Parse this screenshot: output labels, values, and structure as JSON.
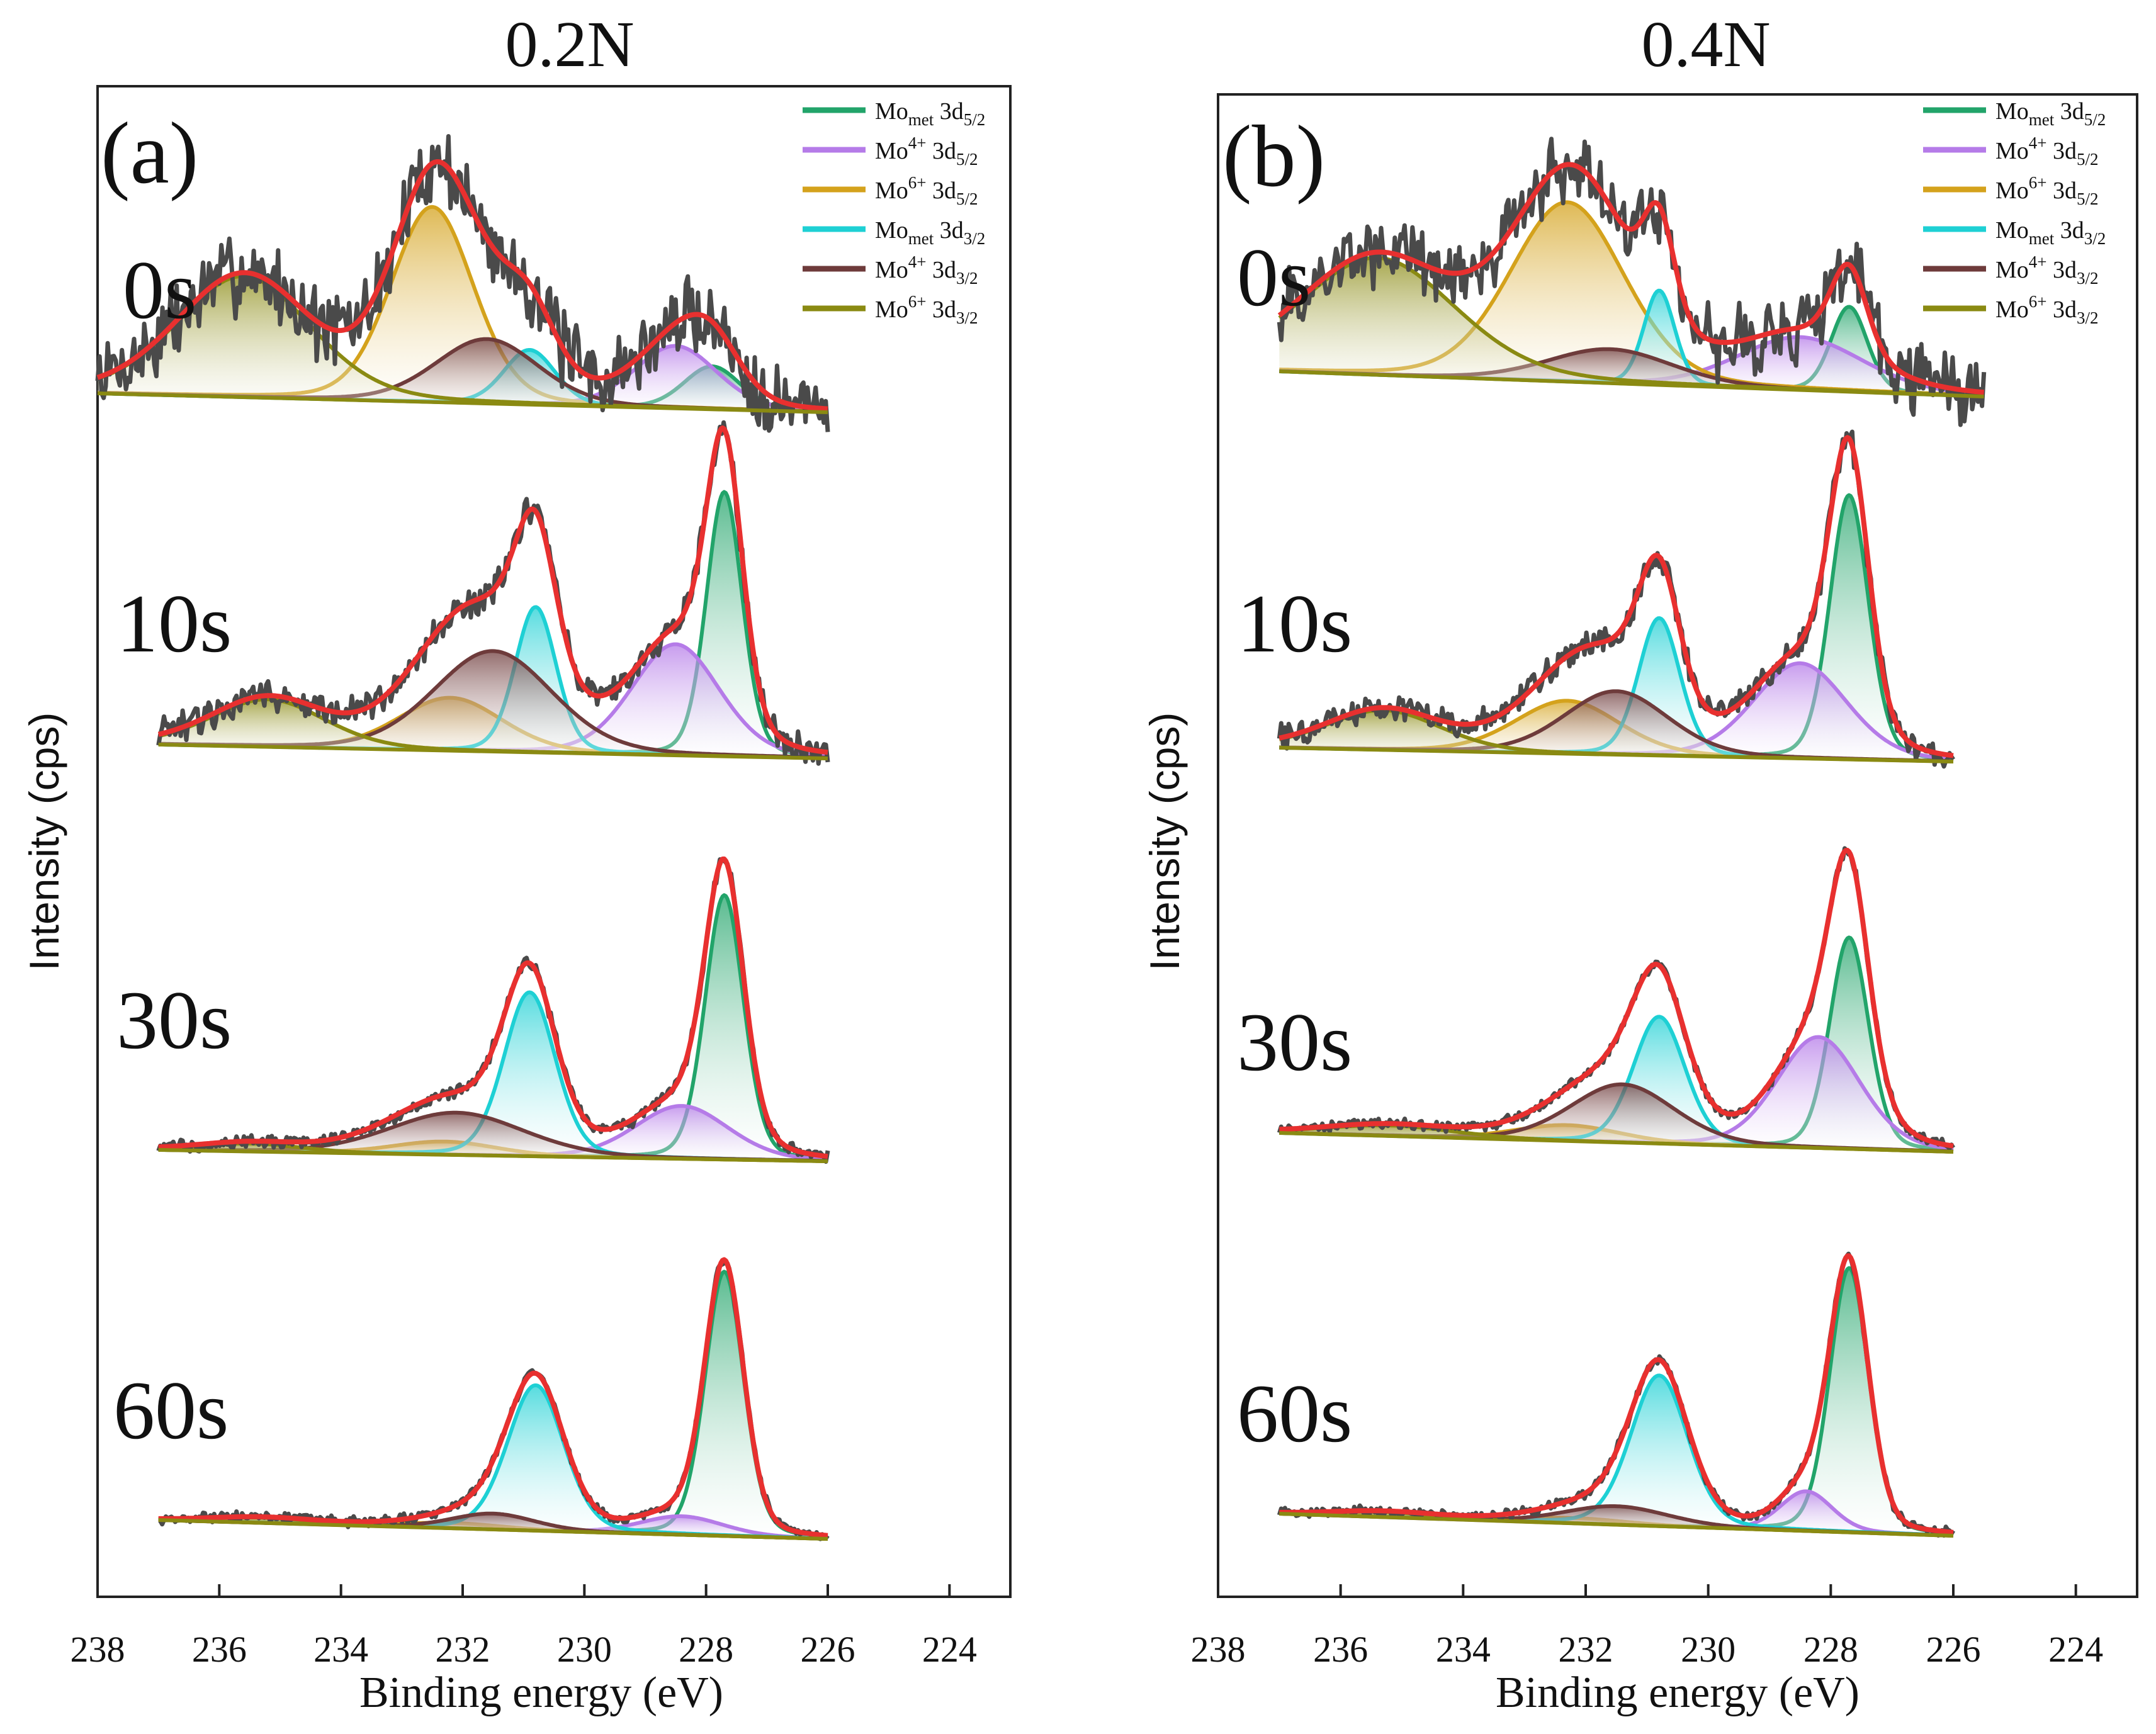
{
  "figure": {
    "panels": [
      {
        "panel_label": "(a)",
        "title": "0.2N"
      },
      {
        "panel_label": "(b)",
        "title": "0.4N"
      }
    ],
    "xlabel": "Binding energy (eV)",
    "ylabel": "Intensity (cps)"
  },
  "colors": {
    "data": "#4a4a4a",
    "envelope": "#e8302f",
    "mo_met_52": "#22a46a",
    "mo4_52": "#b57be8",
    "mo6_52": "#d4a21c",
    "mo_met_32": "#1ed0d4",
    "mo4_32": "#6e3b3b",
    "mo6_32": "#8a8a12"
  },
  "chart_data": [
    {
      "type": "line",
      "title": "0.2N",
      "panel_label": "(a)",
      "xlabel": "Binding energy (eV)",
      "ylabel": "Intensity (cps)",
      "x_reversed": true,
      "xlim": [
        238,
        223
      ],
      "xticks": [
        238,
        236,
        234,
        232,
        230,
        228,
        226,
        224
      ],
      "yticks": "none",
      "legend": {
        "position": "top-right",
        "entries": [
          {
            "base": "Mo",
            "sub": "met",
            "sup": "",
            "orbital": "3d",
            "orbital_sub": "5/2",
            "color": "mo_met_52"
          },
          {
            "base": "Mo",
            "sub": "",
            "sup": "4+",
            "orbital": "3d",
            "orbital_sub": "5/2",
            "color": "mo4_52"
          },
          {
            "base": "Mo",
            "sub": "",
            "sup": "6+",
            "orbital": "3d",
            "orbital_sub": "5/2",
            "color": "mo6_52"
          },
          {
            "base": "Mo",
            "sub": "met",
            "sup": "",
            "orbital": "3d",
            "orbital_sub": "3/2",
            "color": "mo_met_32"
          },
          {
            "base": "Mo",
            "sub": "",
            "sup": "4+",
            "orbital": "3d",
            "orbital_sub": "3/2",
            "color": "mo4_32"
          },
          {
            "base": "Mo",
            "sub": "",
            "sup": "6+",
            "orbital": "3d",
            "orbital_sub": "3/2",
            "color": "mo6_32"
          }
        ]
      },
      "spectra": [
        {
          "label": "0s",
          "x_range": [
            238,
            226
          ],
          "noise": 0.16,
          "components": [
            {
              "name": "Mo_met 3d5/2",
              "color": "mo_met_52",
              "center": 227.9,
              "fwhm": 1.1,
              "amp": 0.22
            },
            {
              "name": "Mo4+ 3d5/2",
              "color": "mo4_52",
              "center": 228.5,
              "fwhm": 1.6,
              "amp": 0.32
            },
            {
              "name": "Mo6+ 3d5/2",
              "color": "mo6_52",
              "center": 232.5,
              "fwhm": 1.6,
              "amp": 1.0
            },
            {
              "name": "Mo_met 3d3/2",
              "color": "mo_met_32",
              "center": 230.9,
              "fwhm": 1.0,
              "amp": 0.28
            },
            {
              "name": "Mo4+ 3d3/2",
              "color": "mo4_32",
              "center": 231.6,
              "fwhm": 2.0,
              "amp": 0.33
            },
            {
              "name": "Mo6+ 3d3/2",
              "color": "mo6_32",
              "center": 235.6,
              "fwhm": 2.6,
              "amp": 0.62
            }
          ]
        },
        {
          "label": "10s",
          "x_range": [
            237,
            226
          ],
          "noise": 0.045,
          "components": [
            {
              "name": "Mo_met 3d5/2",
              "color": "mo_met_52",
              "center": 227.7,
              "fwhm": 0.7,
              "amp": 1.0
            },
            {
              "name": "Mo4+ 3d5/2",
              "color": "mo4_52",
              "center": 228.5,
              "fwhm": 1.7,
              "amp": 0.42
            },
            {
              "name": "Mo6+ 3d5/2",
              "color": "mo6_52",
              "center": 232.2,
              "fwhm": 2.0,
              "amp": 0.2
            },
            {
              "name": "Mo_met 3d3/2",
              "color": "mo_met_32",
              "center": 230.8,
              "fwhm": 0.8,
              "amp": 0.55
            },
            {
              "name": "Mo4+ 3d3/2",
              "color": "mo4_32",
              "center": 231.5,
              "fwhm": 2.3,
              "amp": 0.38
            },
            {
              "name": "Mo6+ 3d3/2",
              "color": "mo6_32",
              "center": 235.2,
              "fwhm": 2.2,
              "amp": 0.18
            }
          ]
        },
        {
          "label": "30s",
          "x_range": [
            237,
            226
          ],
          "noise": 0.02,
          "components": [
            {
              "name": "Mo_met 3d5/2",
              "color": "mo_met_52",
              "center": 227.7,
              "fwhm": 0.75,
              "amp": 1.0
            },
            {
              "name": "Mo4+ 3d5/2",
              "color": "mo4_52",
              "center": 228.4,
              "fwhm": 1.8,
              "amp": 0.2
            },
            {
              "name": "Mo6+ 3d5/2",
              "color": "mo6_52",
              "center": 232.3,
              "fwhm": 2.0,
              "amp": 0.05
            },
            {
              "name": "Mo_met 3d3/2",
              "color": "mo_met_32",
              "center": 230.9,
              "fwhm": 1.0,
              "amp": 0.62
            },
            {
              "name": "Mo4+ 3d3/2",
              "color": "mo4_32",
              "center": 232.1,
              "fwhm": 2.6,
              "amp": 0.16
            },
            {
              "name": "Mo6+ 3d3/2",
              "color": "mo6_32",
              "center": 235.5,
              "fwhm": 2.0,
              "amp": 0.03
            }
          ]
        },
        {
          "label": "60s",
          "x_range": [
            237,
            226
          ],
          "noise": 0.015,
          "components": [
            {
              "name": "Mo_met 3d5/2",
              "color": "mo_met_52",
              "center": 227.7,
              "fwhm": 0.75,
              "amp": 1.0
            },
            {
              "name": "Mo4+ 3d5/2",
              "color": "mo4_52",
              "center": 228.4,
              "fwhm": 1.6,
              "amp": 0.07
            },
            {
              "name": "Mo6+ 3d5/2",
              "color": "mo6_52",
              "center": 232.2,
              "fwhm": 2.0,
              "amp": 0.02
            },
            {
              "name": "Mo_met 3d3/2",
              "color": "mo_met_32",
              "center": 230.8,
              "fwhm": 1.1,
              "amp": 0.55
            },
            {
              "name": "Mo4+ 3d3/2",
              "color": "mo4_32",
              "center": 231.5,
              "fwhm": 1.6,
              "amp": 0.06
            },
            {
              "name": "Mo6+ 3d3/2",
              "color": "mo6_32",
              "center": 235.3,
              "fwhm": 2.0,
              "amp": 0.02
            }
          ]
        }
      ]
    },
    {
      "type": "line",
      "title": "0.4N",
      "panel_label": "(b)",
      "xlabel": "Binding energy (eV)",
      "ylabel": "Intensity (cps)",
      "x_reversed": true,
      "xlim": [
        238,
        223
      ],
      "xticks": [
        238,
        236,
        234,
        232,
        230,
        228,
        226,
        224
      ],
      "yticks": "none",
      "legend": {
        "position": "top-right",
        "entries": [
          {
            "base": "Mo",
            "sub": "met",
            "sup": "",
            "orbital": "3d",
            "orbital_sub": "5/2",
            "color": "mo_met_52"
          },
          {
            "base": "Mo",
            "sub": "",
            "sup": "4+",
            "orbital": "3d",
            "orbital_sub": "5/2",
            "color": "mo4_52"
          },
          {
            "base": "Mo",
            "sub": "",
            "sup": "6+",
            "orbital": "3d",
            "orbital_sub": "5/2",
            "color": "mo6_52"
          },
          {
            "base": "Mo",
            "sub": "met",
            "sup": "",
            "orbital": "3d",
            "orbital_sub": "3/2",
            "color": "mo_met_32"
          },
          {
            "base": "Mo",
            "sub": "",
            "sup": "4+",
            "orbital": "3d",
            "orbital_sub": "3/2",
            "color": "mo4_32"
          },
          {
            "base": "Mo",
            "sub": "",
            "sup": "6+",
            "orbital": "3d",
            "orbital_sub": "3/2",
            "color": "mo6_32"
          }
        ]
      },
      "spectra": [
        {
          "label": "0s",
          "x_range": [
            237,
            225.5
          ],
          "noise": 0.15,
          "components": [
            {
              "name": "Mo_met 3d5/2",
              "color": "mo_met_52",
              "center": 227.7,
              "fwhm": 0.7,
              "amp": 0.45
            },
            {
              "name": "Mo4+ 3d5/2",
              "color": "mo4_52",
              "center": 228.5,
              "fwhm": 2.4,
              "amp": 0.28
            },
            {
              "name": "Mo6+ 3d5/2",
              "color": "mo6_52",
              "center": 232.3,
              "fwhm": 2.2,
              "amp": 0.95
            },
            {
              "name": "Mo_met 3d3/2",
              "color": "mo_met_32",
              "center": 230.8,
              "fwhm": 0.6,
              "amp": 0.5
            },
            {
              "name": "Mo4+ 3d3/2",
              "color": "mo4_32",
              "center": 231.6,
              "fwhm": 2.4,
              "amp": 0.18
            },
            {
              "name": "Mo6+ 3d3/2",
              "color": "mo6_32",
              "center": 235.4,
              "fwhm": 3.0,
              "amp": 0.62
            }
          ]
        },
        {
          "label": "10s",
          "x_range": [
            237,
            226
          ],
          "noise": 0.04,
          "components": [
            {
              "name": "Mo_met 3d5/2",
              "color": "mo_met_52",
              "center": 227.7,
              "fwhm": 0.75,
              "amp": 1.0
            },
            {
              "name": "Mo4+ 3d5/2",
              "color": "mo4_52",
              "center": 228.5,
              "fwhm": 1.8,
              "amp": 0.36
            },
            {
              "name": "Mo6+ 3d5/2",
              "color": "mo6_52",
              "center": 232.3,
              "fwhm": 2.0,
              "amp": 0.2
            },
            {
              "name": "Mo_met 3d3/2",
              "color": "mo_met_32",
              "center": 230.8,
              "fwhm": 0.8,
              "amp": 0.52
            },
            {
              "name": "Mo4+ 3d3/2",
              "color": "mo4_32",
              "center": 231.5,
              "fwhm": 2.0,
              "amp": 0.24
            },
            {
              "name": "Mo6+ 3d3/2",
              "color": "mo6_32",
              "center": 235.3,
              "fwhm": 2.2,
              "amp": 0.15
            }
          ]
        },
        {
          "label": "30s",
          "x_range": [
            237,
            226
          ],
          "noise": 0.015,
          "components": [
            {
              "name": "Mo_met 3d5/2",
              "color": "mo_met_52",
              "center": 227.7,
              "fwhm": 0.75,
              "amp": 0.8
            },
            {
              "name": "Mo4+ 3d5/2",
              "color": "mo4_52",
              "center": 228.2,
              "fwhm": 1.6,
              "amp": 0.42
            },
            {
              "name": "Mo6+ 3d5/2",
              "color": "mo6_52",
              "center": 232.3,
              "fwhm": 2.0,
              "amp": 0.06
            },
            {
              "name": "Mo_met 3d3/2",
              "color": "mo_met_32",
              "center": 230.8,
              "fwhm": 1.0,
              "amp": 0.48
            },
            {
              "name": "Mo4+ 3d3/2",
              "color": "mo4_32",
              "center": 231.4,
              "fwhm": 2.0,
              "amp": 0.22
            },
            {
              "name": "Mo6+ 3d3/2",
              "color": "mo6_32",
              "center": 235.2,
              "fwhm": 2.5,
              "amp": 0.04
            }
          ]
        },
        {
          "label": "60s",
          "x_range": [
            237,
            226
          ],
          "noise": 0.015,
          "components": [
            {
              "name": "Mo_met 3d5/2",
              "color": "mo_met_52",
              "center": 227.7,
              "fwhm": 0.75,
              "amp": 1.0
            },
            {
              "name": "Mo4+ 3d5/2",
              "color": "mo4_52",
              "center": 228.4,
              "fwhm": 1.0,
              "amp": 0.15
            },
            {
              "name": "Mo6+ 3d5/2",
              "color": "mo6_52",
              "center": 232.2,
              "fwhm": 2.0,
              "amp": 0.02
            },
            {
              "name": "Mo_met 3d3/2",
              "color": "mo_met_32",
              "center": 230.8,
              "fwhm": 1.1,
              "amp": 0.57
            },
            {
              "name": "Mo4+ 3d3/2",
              "color": "mo4_32",
              "center": 231.5,
              "fwhm": 2.0,
              "amp": 0.07
            },
            {
              "name": "Mo6+ 3d3/2",
              "color": "mo6_32",
              "center": 235.3,
              "fwhm": 2.0,
              "amp": 0.02
            }
          ]
        }
      ]
    }
  ]
}
